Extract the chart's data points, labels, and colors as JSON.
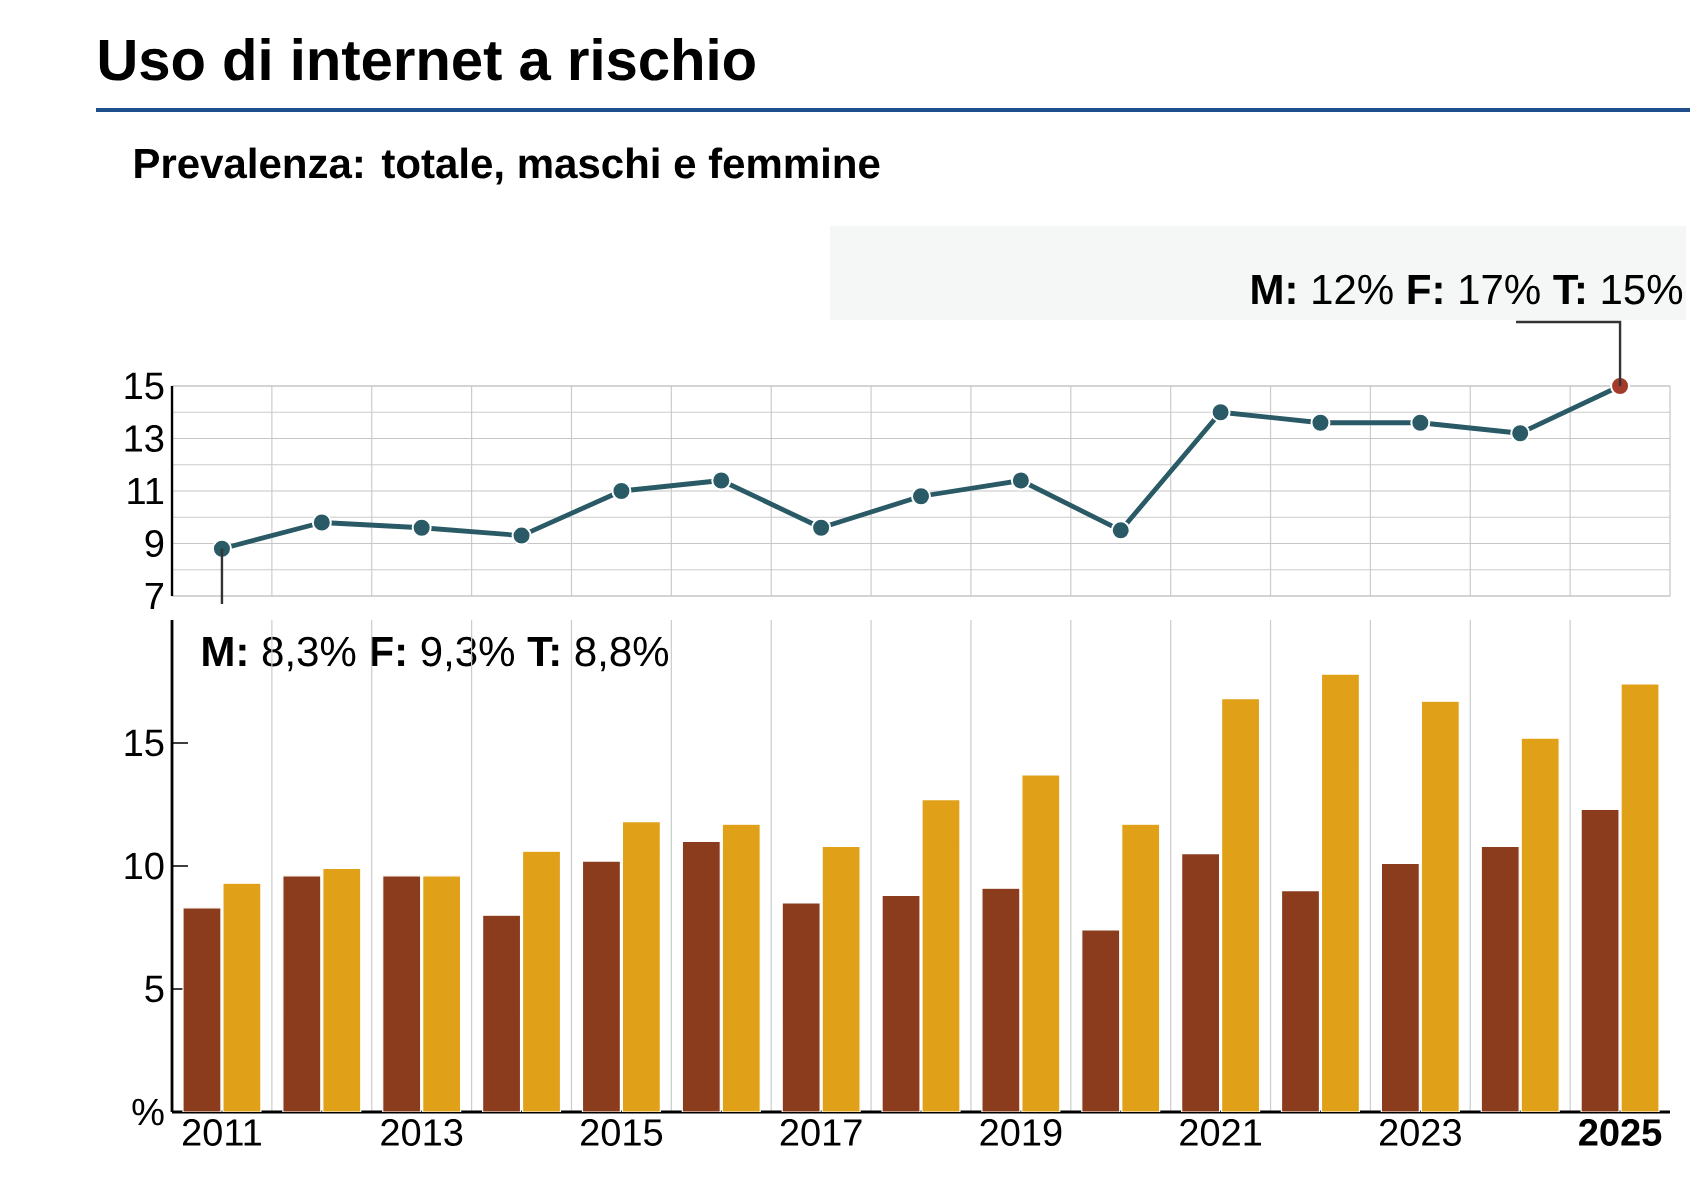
{
  "chart_data": [
    {
      "type": "line",
      "title": "Uso di internet a rischio",
      "subtitle": "Prevalenza: totale, maschi e femmine",
      "categories": [
        "2011",
        null,
        "2013",
        null,
        "2015",
        null,
        "2017",
        null,
        "2019",
        null,
        "2021",
        null,
        "2023",
        null,
        "2025"
      ],
      "series": [
        {
          "color": "#2a5a66",
          "colors": [
            "#2a5a66",
            "#2a5a66",
            "#2a5a66",
            "#2a5a66",
            "#2a5a66",
            "#2a5a66",
            "#2a5a66",
            "#2a5a66",
            "#2a5a66",
            "#2a5a66",
            "#2a5a66",
            "#2a5a66",
            "#2a5a66",
            "#2a5a66",
            "#a33a2a"
          ],
          "values": [
            8.8,
            9.8,
            9.6,
            9.3,
            11.0,
            11.4,
            9.6,
            10.8,
            11.4,
            9.5,
            14.0,
            13.6,
            13.6,
            13.2,
            15
          ]
        }
      ],
      "ylim": [
        7,
        15
      ],
      "yticks": [
        7,
        9,
        11,
        13,
        15
      ],
      "grid": true,
      "marker": "circle",
      "tick_labels": "y",
      "annotations": [
        {
          "text": "**M:** 12%   **F:** 17%   **T:** 15%",
          "x": "2025",
          "y": 15
        },
        {
          "text": "**M:** 8,3%   **F:** 9,3%   **T:** 8,8%",
          "x": "2011",
          "y": 8.8
        }
      ]
    },
    {
      "type": "bar",
      "categories": [
        "2011",
        null,
        "2013",
        null,
        "2015",
        null,
        "2017",
        null,
        "2019",
        null,
        "2021",
        null,
        "2023",
        null,
        "2025"
      ],
      "series": [
        {
          "color": "#8b3c1d",
          "values": [
            8.3,
            9.6,
            9.6,
            8.0,
            10.2,
            11.0,
            8.5,
            8.8,
            9.1,
            7.4,
            10.5,
            9.0,
            10.1,
            10.8,
            12.3
          ]
        },
        {
          "color": "#e0a018",
          "values": [
            9.3,
            9.9,
            9.6,
            10.6,
            11.8,
            11.7,
            10.8,
            12.7,
            13.7,
            11.7,
            16.8,
            17.8,
            16.7,
            15.2,
            17.4
          ]
        }
      ],
      "ylim": [
        0,
        20
      ],
      "yticks": [
        {
          "value": 0,
          "label": "%"
        },
        5,
        10,
        15
      ],
      "grid": "x"
    }
  ]
}
